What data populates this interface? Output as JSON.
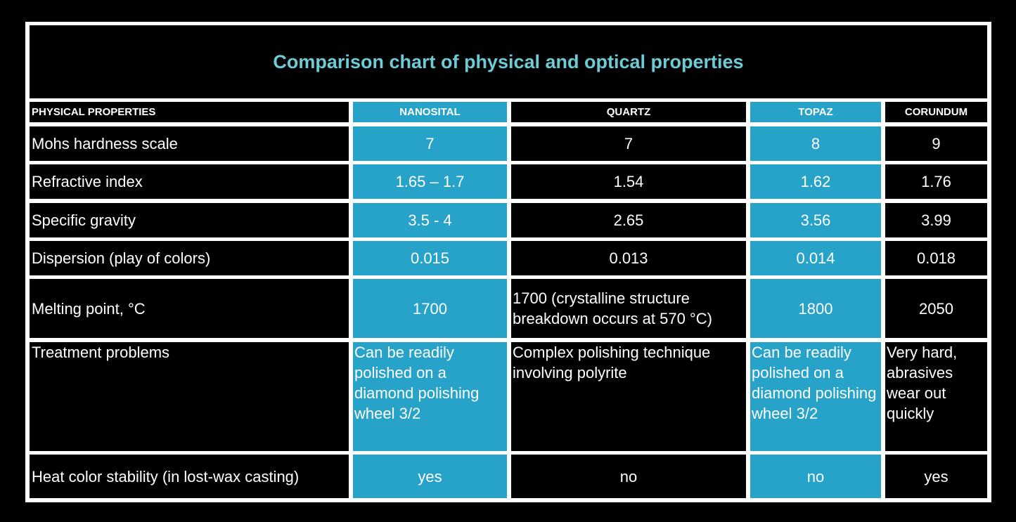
{
  "title": "Comparison chart of physical and optical properties",
  "colors": {
    "title": "#6ccbd5",
    "highlight_column": "#27a2c8",
    "background": "#000000",
    "grid": "#ffffff"
  },
  "headers": [
    "PHYSICAL PROPERTIES",
    "NANOSITAL",
    "QUARTZ",
    "TOPAZ",
    "CORUNDUM"
  ],
  "rows": [
    {
      "label": "Mohs hardness scale",
      "values": [
        "7",
        "7",
        "8",
        "9"
      ]
    },
    {
      "label": "Refractive index",
      "values": [
        "1.65 – 1.7",
        "1.54",
        "1.62",
        "1.76"
      ]
    },
    {
      "label": "Specific gravity",
      "values": [
        "3.5 - 4",
        "2.65",
        "3.56",
        "3.99"
      ]
    },
    {
      "label": "Dispersion (play of colors)",
      "values": [
        "0.015",
        "0.013",
        "0.014",
        "0.018"
      ]
    },
    {
      "label": "Melting point, °C",
      "values": [
        "1700",
        "1700 (crystalline structure breakdown occurs at 570 °C)",
        "1800",
        "2050"
      ]
    },
    {
      "label": "Treatment problems",
      "values": [
        "Can be readily polished on a diamond polishing wheel 3/2",
        "Complex polishing technique involving polyrite",
        "Can be readily polished on a diamond polishing wheel 3/2",
        "Very hard, abrasives wear out quickly"
      ]
    },
    {
      "label": "Heat color stability (in lost-wax casting)",
      "values": [
        "yes",
        "no",
        "no",
        "yes"
      ]
    }
  ]
}
